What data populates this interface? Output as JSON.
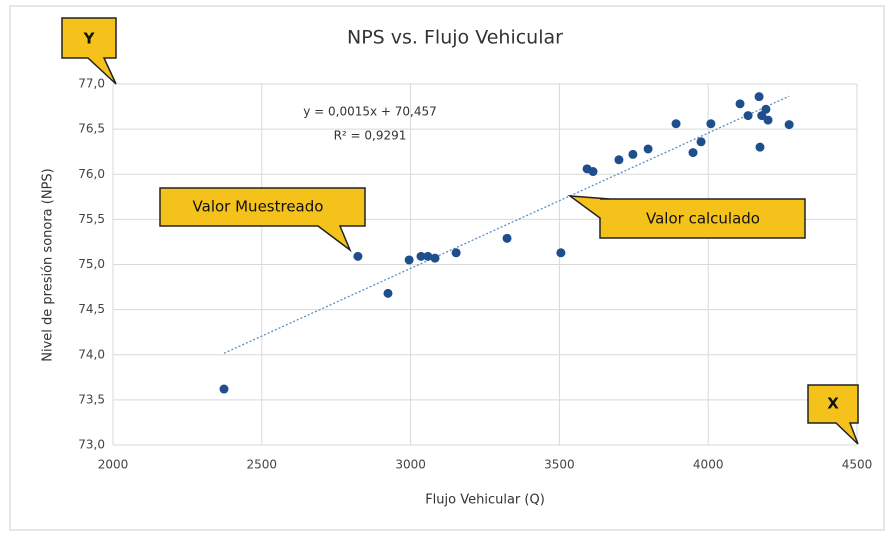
{
  "chart_data": {
    "type": "scatter",
    "title": "NPS vs. Flujo Vehicular",
    "x_label": "Flujo Vehicular (Q)",
    "y_label": "Nivel de presión sonora (NPS)",
    "annotations": [
      "Y",
      "X",
      "Valor Muestreado",
      "Valor calculado"
    ],
    "series": [
      {
        "name": "NPS",
        "color": "#1f4e8c",
        "x": [
          2373,
          2823,
          2924,
          2995,
          3035,
          3058,
          3082,
          3153,
          3324,
          3505,
          3593,
          3613,
          3700,
          3747,
          3798,
          3892,
          3949,
          3976,
          4009,
          4107,
          4134,
          4171,
          4174,
          4180,
          4194,
          4201,
          4272
        ],
        "values": [
          73.62,
          75.09,
          74.68,
          75.05,
          75.09,
          75.09,
          75.07,
          75.13,
          75.29,
          75.13,
          76.06,
          76.03,
          76.16,
          76.22,
          76.28,
          76.56,
          76.24,
          76.36,
          76.56,
          76.78,
          76.65,
          76.86,
          76.3,
          76.65,
          76.72,
          76.6,
          76.55
        ]
      }
    ],
    "trendline": {
      "slope": 0.0015,
      "intercept": 70.457,
      "color": "#5b8fc9",
      "label": "y = 0,0015x + 70,457",
      "r2_label": "R² = 0,9291"
    },
    "xlim": [
      2000,
      4500
    ],
    "xticks": [
      2000,
      2500,
      3000,
      3500,
      4000,
      4500
    ],
    "ylim": [
      73,
      77
    ],
    "yticks": [
      {
        "value": 73,
        "label": "73,0"
      },
      {
        "value": 73.5,
        "label": "73,5"
      },
      {
        "value": 74,
        "label": "74,0"
      },
      {
        "value": 74.5,
        "label": "74,5"
      },
      {
        "value": 75,
        "label": "75,0"
      },
      {
        "value": 75.5,
        "label": "75,5"
      },
      {
        "value": 76,
        "label": "76,0"
      },
      {
        "value": 76.5,
        "label": "76,5"
      },
      {
        "value": 77,
        "label": "77,0"
      }
    ],
    "grid": true
  }
}
